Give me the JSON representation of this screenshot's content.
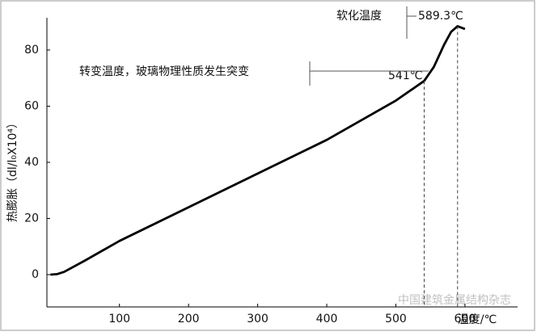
{
  "chart_data": {
    "type": "line",
    "x_label": "温度/℃",
    "y_label": "热膨胀（dl/l₀X10⁴）",
    "annotations": [
      "软化温度",
      "589.3℃",
      "转变温度，玻璃物理性质发生突变",
      "541℃"
    ],
    "watermark": "中国建筑金属结构杂志",
    "x": [
      0,
      10,
      20,
      50,
      100,
      200,
      300,
      400,
      500,
      541,
      555,
      570,
      580,
      589.3,
      600
    ],
    "series": [
      {
        "name": "热膨胀",
        "color": "#000000",
        "values": [
          0,
          0.2,
          1,
          5,
          12,
          24,
          36,
          48,
          62,
          69,
          74,
          82,
          86.5,
          88.5,
          87.5
        ]
      }
    ],
    "xlim": [
      -5,
      675
    ],
    "xticks": [
      100,
      200,
      300,
      400,
      500,
      600
    ],
    "ylim": [
      -11.5,
      91.5
    ],
    "yticks": [
      0,
      20,
      40,
      60,
      80
    ]
  }
}
